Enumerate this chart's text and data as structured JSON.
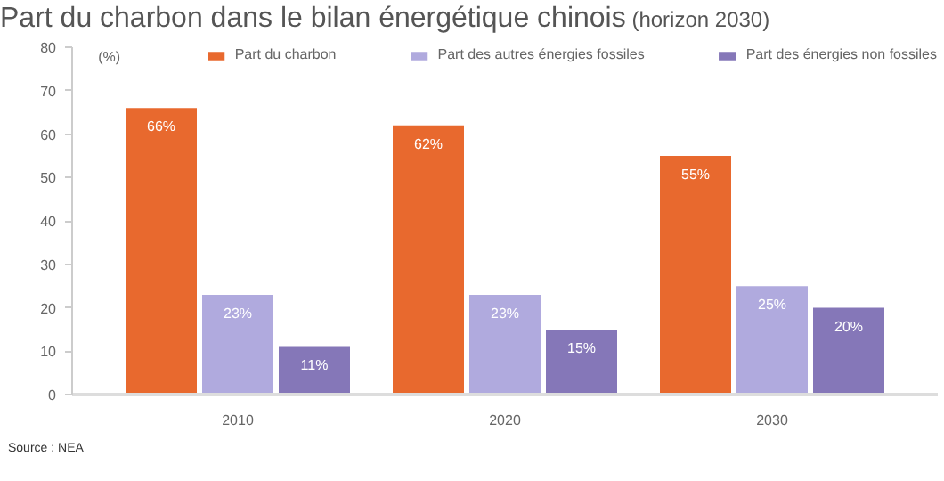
{
  "chart_data": {
    "type": "bar",
    "title": "Part du charbon dans le bilan énergétique chinois",
    "subtitle": "(horizon 2030)",
    "ylabel": "(%)",
    "annotations": [
      "Source : NEA"
    ],
    "categories": [
      "2010",
      "2020",
      "2030"
    ],
    "series": [
      {
        "name": "Part du charbon",
        "color": "#e8692e",
        "values": [
          66,
          62,
          55
        ],
        "value_labels": [
          "66%",
          "62%",
          "55%"
        ]
      },
      {
        "name": "Part des autres énergies fossiles",
        "color": "#b0aade",
        "values": [
          23,
          23,
          25
        ],
        "value_labels": [
          "23%",
          "23%",
          "25%"
        ]
      },
      {
        "name": "Part des énergies non fossiles",
        "color": "#8577b8",
        "values": [
          11,
          15,
          20
        ],
        "value_labels": [
          "11%",
          "15%",
          "20%"
        ]
      }
    ],
    "ylim": [
      0,
      80
    ],
    "yticks": [
      0,
      10,
      20,
      30,
      40,
      50,
      60,
      70,
      80
    ],
    "grid": false,
    "legend": "top"
  }
}
